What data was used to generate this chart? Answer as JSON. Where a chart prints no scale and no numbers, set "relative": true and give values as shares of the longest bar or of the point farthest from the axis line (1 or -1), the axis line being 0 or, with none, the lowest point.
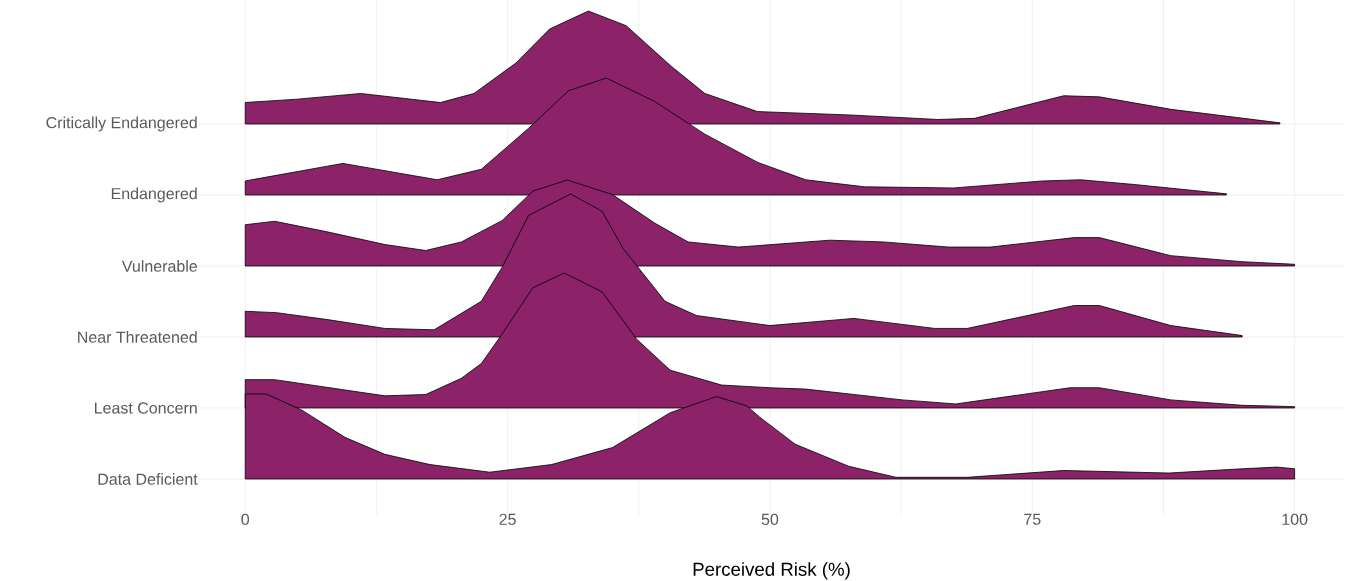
{
  "chart_data": [
    {
      "type": "area",
      "relative": true,
      "xlim": [
        -4.5,
        104.8
      ],
      "tick_labels": false,
      "grid": true,
      "series": [
        {
          "name": "Critically Endangered",
          "x": [
            0,
            5,
            11,
            18.6,
            21.8,
            25.8,
            29,
            32.7,
            36.3,
            40.6,
            43.8,
            48.8,
            57.6,
            66,
            69.5,
            78,
            81.4,
            88.2,
            98.6
          ],
          "values": [
            0.19,
            0.22,
            0.27,
            0.19,
            0.27,
            0.54,
            0.84,
            1,
            0.87,
            0.51,
            0.27,
            0.11,
            0.08,
            0.04,
            0.05,
            0.25,
            0.24,
            0.13,
            0.01
          ]
        }
      ]
    },
    {
      "type": "area",
      "relative": true,
      "xlim": [
        -4.5,
        104.8
      ],
      "tick_labels": false,
      "grid": true,
      "series": [
        {
          "name": "Endangered",
          "x": [
            0,
            9.3,
            18.3,
            22.5,
            27,
            30.8,
            34.4,
            39,
            43.8,
            48.8,
            53.4,
            59,
            67.5,
            76,
            79.6,
            84.7,
            93.5
          ],
          "values": [
            0.12,
            0.27,
            0.13,
            0.22,
            0.57,
            0.89,
            1,
            0.8,
            0.52,
            0.28,
            0.13,
            0.07,
            0.06,
            0.12,
            0.13,
            0.09,
            0.01
          ]
        }
      ]
    },
    {
      "type": "area",
      "relative": true,
      "xlim": [
        -4.5,
        104.8
      ],
      "tick_labels": false,
      "grid": true,
      "series": [
        {
          "name": "Vulnerable",
          "x": [
            0,
            2.8,
            7.7,
            13.3,
            17.2,
            20.6,
            24.5,
            27.4,
            30.7,
            35,
            39,
            42.2,
            47,
            55.7,
            60.8,
            67,
            71,
            79,
            81.4,
            88.2,
            95,
            100
          ],
          "values": [
            0.48,
            0.52,
            0.4,
            0.25,
            0.18,
            0.28,
            0.53,
            0.87,
            1,
            0.83,
            0.5,
            0.28,
            0.22,
            0.3,
            0.28,
            0.22,
            0.22,
            0.33,
            0.33,
            0.12,
            0.05,
            0.02
          ]
        }
      ]
    },
    {
      "type": "area",
      "relative": true,
      "xlim": [
        -4.5,
        104.8
      ],
      "tick_labels": false,
      "grid": true,
      "series": [
        {
          "name": "Near Threatened",
          "x": [
            0,
            3,
            8,
            13.3,
            18,
            22.5,
            24.5,
            27,
            31,
            34,
            36,
            40,
            43,
            48,
            50,
            58,
            65.7,
            68.8,
            79,
            81.4,
            88.2,
            95
          ],
          "values": [
            0.18,
            0.17,
            0.12,
            0.06,
            0.05,
            0.25,
            0.49,
            0.85,
            1,
            0.88,
            0.62,
            0.25,
            0.15,
            0.1,
            0.08,
            0.13,
            0.06,
            0.06,
            0.22,
            0.22,
            0.08,
            0.01
          ]
        }
      ]
    },
    {
      "type": "area",
      "relative": true,
      "xlim": [
        -4.5,
        104.8
      ],
      "tick_labels": false,
      "grid": true,
      "series": [
        {
          "name": "Least Concern",
          "x": [
            0,
            2.8,
            13.3,
            17.2,
            20.6,
            22.5,
            24.5,
            27.4,
            30.4,
            34,
            37.3,
            40.5,
            45.4,
            50,
            53.4,
            62.6,
            67.7,
            78.6,
            81.4,
            88.2,
            95,
            100
          ],
          "values": [
            0.21,
            0.21,
            0.09,
            0.1,
            0.22,
            0.33,
            0.55,
            0.89,
            1,
            0.86,
            0.51,
            0.28,
            0.17,
            0.15,
            0.14,
            0.06,
            0.03,
            0.15,
            0.15,
            0.06,
            0.02,
            0.01
          ]
        }
      ]
    },
    {
      "type": "area",
      "relative": true,
      "xlabel": "Perceived Risk (%)",
      "xlim": [
        -4.5,
        104.8
      ],
      "xticks": [
        {
          "value": 0,
          "label": "0"
        },
        {
          "value": 12.5,
          "label": null
        },
        {
          "value": 25,
          "label": "25"
        },
        {
          "value": 37.5,
          "label": null
        },
        {
          "value": 50,
          "label": "50"
        },
        {
          "value": 62.5,
          "label": null
        },
        {
          "value": 75,
          "label": "75"
        },
        {
          "value": 87.5,
          "label": null
        },
        {
          "value": 100,
          "label": "100"
        }
      ],
      "tick_labels": "x",
      "grid": true,
      "series": [
        {
          "name": "Data Deficient",
          "x": [
            0,
            2,
            5.4,
            9.5,
            13.3,
            17.6,
            23.3,
            29.2,
            35,
            40.5,
            44.9,
            47.8,
            49,
            52.4,
            57.5,
            62,
            68.8,
            78,
            88,
            95,
            98.3,
            100
          ],
          "values": [
            1,
            1,
            0.81,
            0.49,
            0.29,
            0.17,
            0.08,
            0.17,
            0.37,
            0.78,
            0.97,
            0.86,
            0.73,
            0.41,
            0.15,
            0.02,
            0.02,
            0.1,
            0.07,
            0.12,
            0.14,
            0.12
          ]
        }
      ]
    }
  ]
}
